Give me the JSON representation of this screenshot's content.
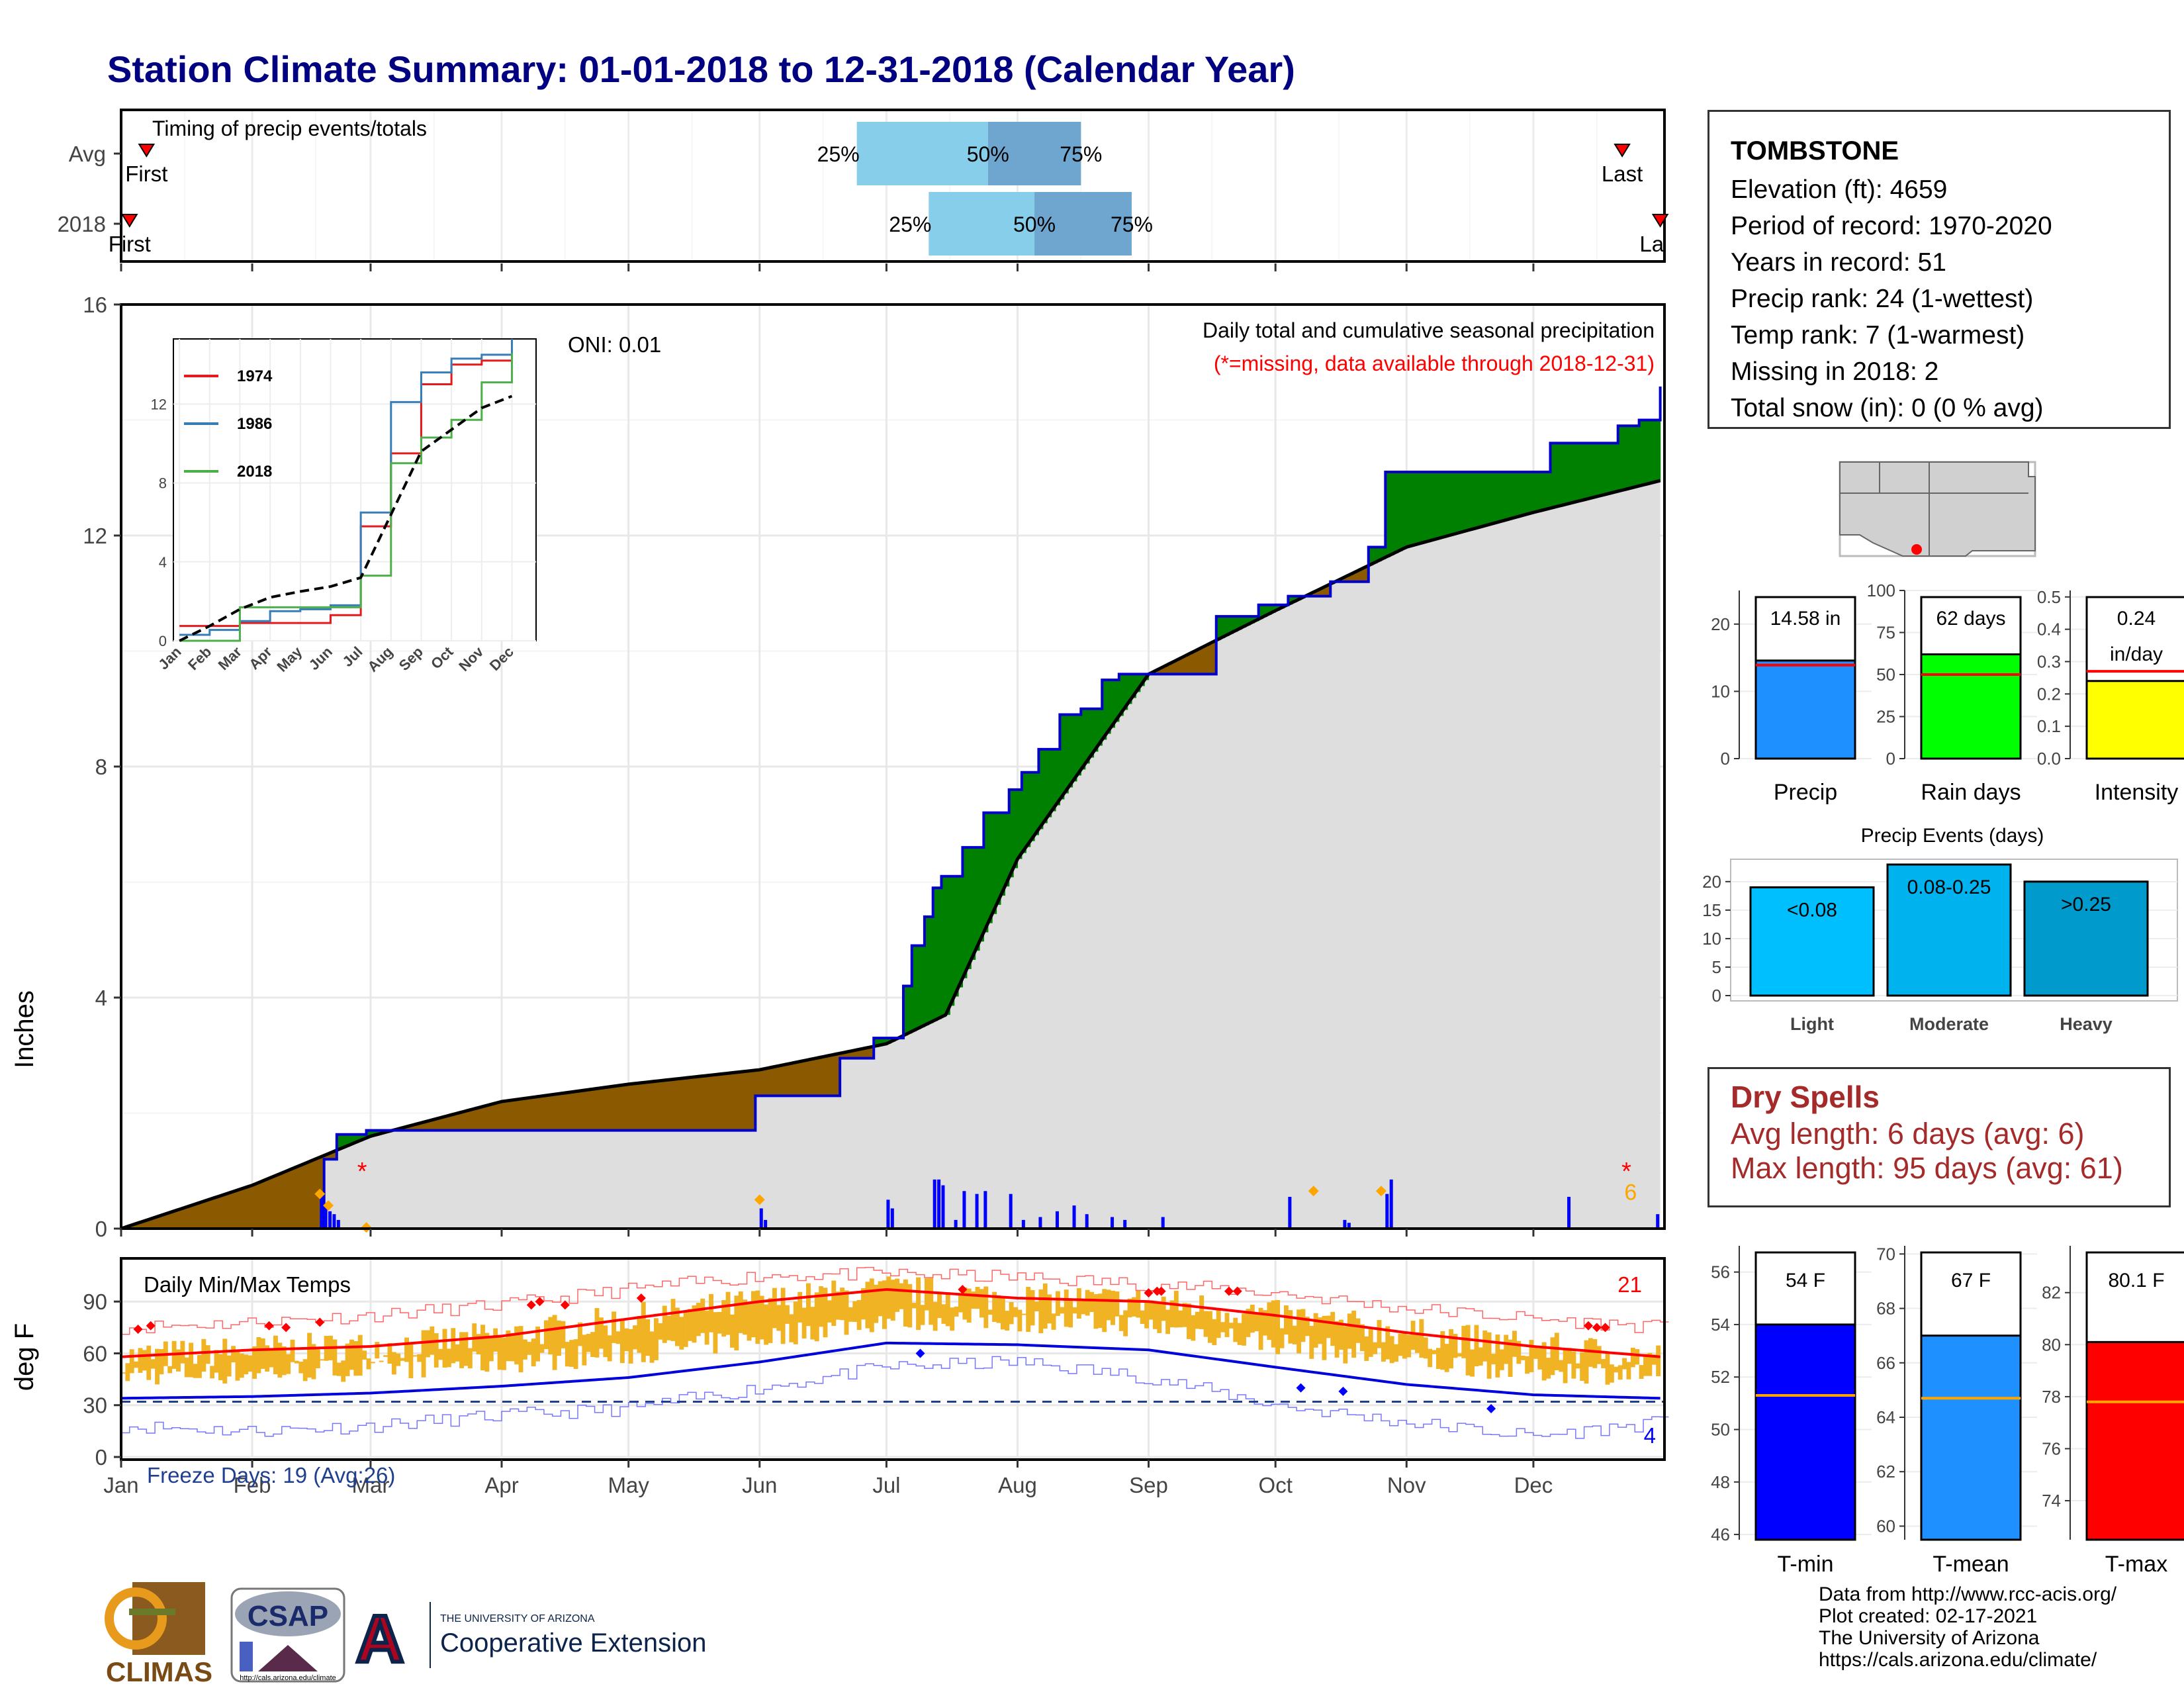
{
  "title": "Station Climate Summary: 01-01-2018 to 12-31-2018 (Calendar Year)",
  "months": [
    "Jan",
    "Feb",
    "Mar",
    "Apr",
    "May",
    "Jun",
    "Jul",
    "Aug",
    "Sep",
    "Oct",
    "Nov",
    "Dec"
  ],
  "timing": {
    "label": "Timing of precip events/totals",
    "rows": [
      {
        "name": "Avg",
        "first_label": "First",
        "last_label": "Last",
        "p25": "25%",
        "p50": "50%",
        "p75": "75%"
      },
      {
        "name": "2018",
        "first_label": "First",
        "last_label": "Last",
        "p25": "25%",
        "p50": "50%",
        "p75": "75%"
      }
    ]
  },
  "station": {
    "name": "TOMBSTONE",
    "lines": [
      "Elevation (ft): 4659",
      "Period of record: 1970-2020",
      "Years in record: 51",
      "Precip rank: 24 (1-wettest)",
      "Temp rank: 7 (1-warmest)",
      "Missing in 2018: 2",
      "Total snow (in): 0 (0 % avg)"
    ]
  },
  "precip_panel": {
    "ylabel": "Inches",
    "y_ticks": [
      "0",
      "4",
      "8",
      "12",
      "16"
    ],
    "oni": "ONI: 0.01",
    "subtitle": "Daily total and cumulative seasonal precipitation",
    "missing_note": "(*=missing, data available through 2018-12-31)",
    "missing_marker": "*",
    "count_label": "6"
  },
  "inset": {
    "y_ticks": [
      "0",
      "4",
      "8",
      "12"
    ],
    "legend": [
      {
        "name": "1974",
        "color": "#e41a1c"
      },
      {
        "name": "1986",
        "color": "#377eb8"
      },
      {
        "name": "2018",
        "color": "#4daf4a"
      }
    ]
  },
  "summary_bars": [
    {
      "label": "Precip",
      "value_text": "14.58 in",
      "ticks": [
        "0",
        "10",
        "20"
      ],
      "color": "#1e90ff"
    },
    {
      "label": "Rain days",
      "value_text": "62 days",
      "ticks": [
        "0",
        "25",
        "50",
        "75",
        "100"
      ],
      "color": "#00ff00"
    },
    {
      "label": "Intensity",
      "value_text": "0.24",
      "value_text2": "in/day",
      "ticks": [
        "0.0",
        "0.1",
        "0.2",
        "0.3",
        "0.4",
        "0.5"
      ],
      "color": "#ffff00"
    }
  ],
  "events": {
    "title": "Precip Events (days)",
    "ticks": [
      "0",
      "5",
      "10",
      "15",
      "20"
    ],
    "bars": [
      {
        "label": "Light",
        "range": "<0.08",
        "color": "#00bfff"
      },
      {
        "label": "Moderate",
        "range": "0.08-0.25",
        "color": "#00b2ee"
      },
      {
        "label": "Heavy",
        "range": ">0.25",
        "color": "#009acd"
      }
    ]
  },
  "dry_spells": {
    "title": "Dry Spells",
    "avg": "Avg length: 6 days (avg: 6)",
    "max": "Max length: 95 days (avg: 61)"
  },
  "temp_panel": {
    "ylabel": "deg F",
    "label": "Daily Min/Max Temps",
    "y_ticks": [
      "0",
      "30",
      "60",
      "90"
    ],
    "freeze": "Freeze Days: 19 (Avg:26)",
    "hot_count": "21",
    "cold_count": "4"
  },
  "temp_bars": [
    {
      "label": "T-min",
      "value_text": "54 F",
      "ticks": [
        "46",
        "48",
        "50",
        "52",
        "54",
        "56"
      ],
      "color": "#0000ff"
    },
    {
      "label": "T-mean",
      "value_text": "67 F",
      "ticks": [
        "60",
        "62",
        "64",
        "66",
        "68",
        "70"
      ],
      "color": "#1e90ff"
    },
    {
      "label": "T-max",
      "value_text": "80.1 F",
      "ticks": [
        "74",
        "76",
        "78",
        "80",
        "82"
      ],
      "color": "#ff0000"
    }
  ],
  "logos": {
    "climas": "CLIMAS",
    "csap": "CSAP",
    "csap_url": "http://cals.arizona.edu/climate",
    "ua_small": "THE UNIVERSITY OF ARIZONA",
    "coop": "Cooperative Extension"
  },
  "credits": [
    "Data from http://www.rcc-acis.org/",
    "Plot created: 02-17-2021",
    "The University of Arizona",
    "https://cals.arizona.edu/climate/"
  ],
  "chart_data": [
    {
      "type": "bar",
      "title": "Timing of precip events/totals",
      "categories": [
        "Avg",
        "2018"
      ],
      "series": [
        {
          "name": "25%",
          "values": [
            "Jun 24",
            "Jul 11"
          ]
        },
        {
          "name": "50%",
          "values": [
            "Jul 25",
            "Aug 5"
          ]
        },
        {
          "name": "75%",
          "values": [
            "Aug 16",
            "Aug 28"
          ]
        },
        {
          "name": "First",
          "values": [
            "Jan 7",
            "Jan 3"
          ]
        },
        {
          "name": "Last",
          "values": [
            "Dec 22",
            "Dec 31"
          ]
        }
      ]
    },
    {
      "type": "area",
      "title": "Daily total and cumulative seasonal precipitation",
      "ylabel": "Inches",
      "ylim": [
        0,
        16
      ],
      "x_unit": "day of year",
      "xlim": [
        1,
        365
      ],
      "series": [
        {
          "name": "Cumulative 2018",
          "x": [
            1,
            47,
            49,
            52,
            59,
            60,
            150,
            151,
            170,
            171,
            179,
            186,
            188,
            191,
            193,
            195,
            200,
            205,
            211,
            214,
            218,
            223,
            228,
            233,
            237,
            260,
            270,
            277,
            287,
            296,
            300,
            323,
            339,
            355,
            360,
            365
          ],
          "values": [
            0,
            0,
            1.2,
            1.63,
            1.7,
            1.7,
            1.7,
            2.3,
            2.3,
            2.95,
            3.3,
            4.2,
            4.9,
            5.4,
            5.9,
            6.1,
            6.6,
            7.2,
            7.6,
            7.9,
            8.3,
            8.9,
            9.0,
            9.5,
            9.6,
            10.6,
            10.8,
            10.95,
            11.2,
            11.8,
            13.1,
            13.1,
            13.6,
            13.9,
            14.0,
            14.58
          ]
        },
        {
          "name": "Average cumulative",
          "x": [
            1,
            32,
            60,
            91,
            121,
            152,
            182,
            196,
            213,
            244,
            274,
            305,
            335,
            365
          ],
          "values": [
            0,
            0.75,
            1.6,
            2.2,
            2.5,
            2.75,
            3.2,
            3.7,
            6.4,
            9.6,
            10.7,
            11.8,
            12.4,
            12.95
          ]
        },
        {
          "name": "Daily precip",
          "x": [
            48,
            49,
            50,
            51,
            52,
            152,
            153,
            182,
            183,
            193,
            194,
            195,
            198,
            200,
            203,
            205,
            211,
            214,
            218,
            222,
            226,
            229,
            235,
            238,
            247,
            277,
            290,
            291,
            300,
            301,
            343,
            364
          ],
          "values": [
            0.6,
            0.38,
            0.3,
            0.25,
            0.15,
            0.35,
            0.15,
            0.5,
            0.35,
            0.85,
            0.85,
            0.75,
            0.15,
            0.65,
            0.6,
            0.65,
            0.6,
            0.15,
            0.2,
            0.3,
            0.4,
            0.25,
            0.2,
            0.15,
            0.2,
            0.55,
            0.15,
            0.1,
            0.6,
            0.85,
            0.55,
            0.25
          ]
        }
      ]
    },
    {
      "type": "line",
      "title": "",
      "xlabel": "",
      "ylabel": "",
      "x": [
        "Jan",
        "Feb",
        "Mar",
        "Apr",
        "May",
        "Jun",
        "Jul",
        "Aug",
        "Sep",
        "Oct",
        "Nov",
        "Dec"
      ],
      "ylim": [
        0,
        15
      ],
      "series": [
        {
          "name": "1974",
          "values": [
            0.75,
            0.75,
            0.9,
            0.9,
            0.9,
            1.3,
            5.8,
            9.5,
            13.0,
            14.0,
            14.2,
            14.2
          ]
        },
        {
          "name": "1986",
          "values": [
            0.3,
            0.55,
            1.0,
            1.5,
            1.6,
            1.8,
            6.5,
            12.1,
            13.6,
            14.3,
            14.5,
            15.3
          ]
        },
        {
          "name": "2018",
          "values": [
            0,
            0,
            1.7,
            1.7,
            1.7,
            1.7,
            3.3,
            9.0,
            10.3,
            11.2,
            13.1,
            14.58
          ]
        },
        {
          "name": "Average",
          "values": [
            0,
            0.75,
            1.6,
            2.2,
            2.5,
            2.75,
            3.2,
            6.4,
            9.6,
            10.7,
            11.8,
            12.4
          ]
        }
      ]
    },
    {
      "type": "bar",
      "title": "",
      "categories": [
        "Precip",
        "Rain days",
        "Intensity"
      ],
      "values": [
        14.58,
        62,
        0.24
      ],
      "averages": [
        13.9,
        50,
        0.27
      ]
    },
    {
      "type": "bar",
      "title": "Precip Events (days)",
      "categories": [
        "Light",
        "Moderate",
        "Heavy"
      ],
      "series_labels": [
        "<0.08",
        "0.08-0.25",
        ">0.25"
      ],
      "values": [
        19,
        23,
        20
      ],
      "ylim": [
        0,
        23
      ]
    },
    {
      "type": "area",
      "title": "Daily Min/Max Temps",
      "ylabel": "deg F",
      "ylim": [
        0,
        115
      ],
      "x": [
        "Jan",
        "Feb",
        "Mar",
        "Apr",
        "May",
        "Jun",
        "Jul",
        "Aug",
        "Sep",
        "Oct",
        "Nov",
        "Dec",
        "Dec 31"
      ],
      "series": [
        {
          "name": "Average max",
          "values": [
            58,
            62,
            64,
            70,
            80,
            90,
            97,
            92,
            90,
            82,
            72,
            64,
            58
          ]
        },
        {
          "name": "Average min",
          "values": [
            34,
            35,
            37,
            41,
            46,
            55,
            66,
            65,
            62,
            52,
            42,
            36,
            34
          ]
        },
        {
          "name": "Record max",
          "values": [
            75,
            78,
            82,
            88,
            97,
            105,
            106,
            104,
            100,
            95,
            86,
            80,
            75
          ]
        },
        {
          "name": "Record min",
          "values": [
            18,
            15,
            18,
            24,
            28,
            40,
            52,
            55,
            46,
            30,
            20,
            12,
            20
          ]
        }
      ],
      "freeze_threshold": 32
    },
    {
      "type": "bar",
      "title": "",
      "categories": [
        "T-min",
        "T-mean",
        "T-max"
      ],
      "values": [
        54.0,
        67.0,
        80.1
      ],
      "averages": [
        51.3,
        64.7,
        77.8
      ]
    }
  ]
}
